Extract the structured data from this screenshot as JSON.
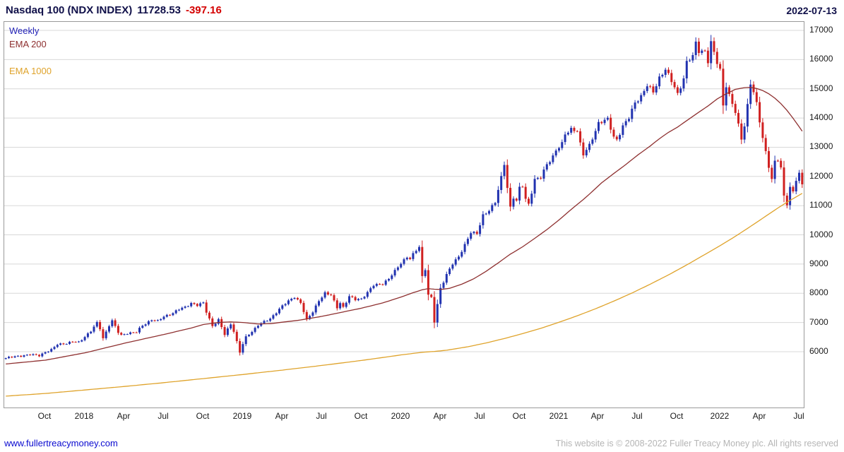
{
  "header": {
    "title": "Nasdaq 100 (NDX INDEX)",
    "last_price": "11728.53",
    "change": "-397.16",
    "date": "2022-07-13"
  },
  "legend": {
    "items": [
      {
        "label": "Weekly",
        "color": "#2424b8"
      },
      {
        "label": "EMA 200",
        "color": "#8e3030"
      },
      {
        "label": "EMA 1000",
        "color": "#dfa32b"
      }
    ]
  },
  "footer": {
    "website": "www.fullertreacymoney.com",
    "copyright": "This website is © 2008-2022 Fuller Treacy Money plc. All rights reserved"
  },
  "chart_data": {
    "type": "candlestick",
    "title": "Nasdaq 100 (NDX INDEX)",
    "interval": "Weekly",
    "as_of": "2022-07-13",
    "last_close": 11728.53,
    "prev_close": 12125.69,
    "change": -397.16,
    "legend_position": "top-left",
    "grid": "horizontal",
    "total_weeks": 263,
    "colors": {
      "up": "#2233b0",
      "down": "#d02020",
      "grid": "#d8d8d8",
      "border": "#9a9a9a"
    },
    "y_axis": {
      "position": "right",
      "ticks": [
        17000,
        16000,
        15000,
        14000,
        13000,
        12000,
        11000,
        10000,
        9000,
        8000,
        7000,
        6000
      ],
      "view_max": 17290,
      "view_min": 4090
    },
    "x_axis": {
      "start": "2017-07",
      "end": "2022-07",
      "labels": [
        {
          "text": "Oct",
          "week": 13
        },
        {
          "text": "2018",
          "week": 26
        },
        {
          "text": "Apr",
          "week": 39
        },
        {
          "text": "Jul",
          "week": 52
        },
        {
          "text": "Oct",
          "week": 65
        },
        {
          "text": "2019",
          "week": 78
        },
        {
          "text": "Apr",
          "week": 91
        },
        {
          "text": "Jul",
          "week": 104
        },
        {
          "text": "Oct",
          "week": 117
        },
        {
          "text": "2020",
          "week": 130
        },
        {
          "text": "Apr",
          "week": 143
        },
        {
          "text": "Jul",
          "week": 156
        },
        {
          "text": "Oct",
          "week": 169
        },
        {
          "text": "2021",
          "week": 182
        },
        {
          "text": "Apr",
          "week": 195
        },
        {
          "text": "Jul",
          "week": 208
        },
        {
          "text": "Oct",
          "week": 221
        },
        {
          "text": "2022",
          "week": 235
        },
        {
          "text": "Apr",
          "week": 248
        },
        {
          "text": "Jul",
          "week": 261
        }
      ]
    },
    "price_anchors": [
      [
        0,
        5780
      ],
      [
        4,
        5850
      ],
      [
        8,
        5900
      ],
      [
        11,
        5870
      ],
      [
        13,
        5990
      ],
      [
        15,
        6060
      ],
      [
        17,
        6250
      ],
      [
        20,
        6290
      ],
      [
        22,
        6340
      ],
      [
        24,
        6320
      ],
      [
        26,
        6520
      ],
      [
        28,
        6710
      ],
      [
        30,
        6980
      ],
      [
        31,
        6790
      ],
      [
        32,
        6460
      ],
      [
        34,
        6910
      ],
      [
        35,
        7060
      ],
      [
        37,
        6660
      ],
      [
        38,
        6560
      ],
      [
        40,
        6640
      ],
      [
        43,
        6670
      ],
      [
        45,
        6890
      ],
      [
        48,
        7100
      ],
      [
        50,
        7040
      ],
      [
        52,
        7200
      ],
      [
        55,
        7330
      ],
      [
        57,
        7450
      ],
      [
        59,
        7520
      ],
      [
        61,
        7670
      ],
      [
        63,
        7590
      ],
      [
        65,
        7660
      ],
      [
        66,
        7360
      ],
      [
        68,
        6890
      ],
      [
        70,
        7090
      ],
      [
        72,
        6580
      ],
      [
        74,
        6950
      ],
      [
        75,
        6710
      ],
      [
        77,
        5980
      ],
      [
        78,
        6260
      ],
      [
        79,
        6490
      ],
      [
        81,
        6690
      ],
      [
        83,
        6920
      ],
      [
        85,
        7020
      ],
      [
        87,
        7120
      ],
      [
        89,
        7360
      ],
      [
        91,
        7570
      ],
      [
        93,
        7720
      ],
      [
        95,
        7880
      ],
      [
        97,
        7680
      ],
      [
        99,
        7080
      ],
      [
        101,
        7360
      ],
      [
        103,
        7760
      ],
      [
        105,
        8000
      ],
      [
        107,
        7930
      ],
      [
        109,
        7520
      ],
      [
        110,
        7680
      ],
      [
        111,
        7520
      ],
      [
        113,
        7880
      ],
      [
        115,
        7790
      ],
      [
        117,
        7820
      ],
      [
        119,
        8020
      ],
      [
        121,
        8270
      ],
      [
        124,
        8340
      ],
      [
        126,
        8490
      ],
      [
        128,
        8750
      ],
      [
        130,
        9040
      ],
      [
        132,
        9250
      ],
      [
        133,
        9180
      ],
      [
        135,
        9460
      ],
      [
        136,
        9590
      ],
      [
        137,
        8570
      ],
      [
        138,
        8840
      ],
      [
        139,
        7960
      ],
      [
        140,
        7840
      ],
      [
        141,
        7010
      ],
      [
        142,
        7610
      ],
      [
        143,
        8160
      ],
      [
        145,
        8660
      ],
      [
        147,
        9010
      ],
      [
        149,
        9230
      ],
      [
        151,
        9670
      ],
      [
        153,
        10100
      ],
      [
        155,
        10020
      ],
      [
        157,
        10660
      ],
      [
        159,
        10860
      ],
      [
        161,
        11110
      ],
      [
        163,
        11950
      ],
      [
        164,
        12430
      ],
      [
        165,
        11630
      ],
      [
        166,
        10950
      ],
      [
        167,
        11290
      ],
      [
        168,
        11160
      ],
      [
        169,
        11590
      ],
      [
        170,
        11670
      ],
      [
        171,
        11220
      ],
      [
        172,
        11060
      ],
      [
        174,
        11900
      ],
      [
        176,
        11950
      ],
      [
        178,
        12410
      ],
      [
        180,
        12700
      ],
      [
        181,
        12900
      ],
      [
        183,
        13100
      ],
      [
        184,
        13430
      ],
      [
        186,
        13630
      ],
      [
        188,
        13580
      ],
      [
        189,
        13100
      ],
      [
        190,
        12730
      ],
      [
        192,
        13070
      ],
      [
        193,
        13330
      ],
      [
        195,
        13830
      ],
      [
        197,
        13900
      ],
      [
        198,
        13950
      ],
      [
        200,
        13360
      ],
      [
        201,
        13270
      ],
      [
        203,
        13700
      ],
      [
        205,
        14000
      ],
      [
        207,
        14550
      ],
      [
        209,
        14740
      ],
      [
        211,
        15100
      ],
      [
        213,
        14900
      ],
      [
        215,
        15390
      ],
      [
        217,
        15660
      ],
      [
        218,
        15450
      ],
      [
        220,
        15060
      ],
      [
        221,
        14830
      ],
      [
        223,
        15360
      ],
      [
        224,
        15890
      ],
      [
        226,
        16110
      ],
      [
        227,
        16580
      ],
      [
        228,
        16320
      ],
      [
        230,
        16290
      ],
      [
        231,
        15920
      ],
      [
        232,
        16550
      ],
      [
        234,
        15910
      ],
      [
        235,
        15660
      ],
      [
        236,
        14460
      ],
      [
        237,
        15110
      ],
      [
        238,
        14750
      ],
      [
        240,
        14190
      ],
      [
        241,
        13760
      ],
      [
        242,
        13310
      ],
      [
        243,
        13760
      ],
      [
        244,
        14430
      ],
      [
        245,
        15170
      ],
      [
        246,
        14870
      ],
      [
        247,
        14470
      ],
      [
        248,
        13900
      ],
      [
        249,
        13340
      ],
      [
        250,
        12850
      ],
      [
        251,
        12350
      ],
      [
        252,
        11890
      ],
      [
        253,
        12480
      ],
      [
        254,
        12570
      ],
      [
        255,
        12290
      ],
      [
        256,
        11340
      ],
      [
        257,
        11080
      ],
      [
        258,
        11620
      ],
      [
        259,
        11460
      ],
      [
        260,
        11870
      ],
      [
        261,
        12125.69
      ],
      [
        262,
        11728.53
      ]
    ],
    "overlays": [
      {
        "id": "ema-200-line",
        "name": "EMA 200",
        "color": "#8e3030",
        "points": [
          [
            0,
            5580
          ],
          [
            13,
            5710
          ],
          [
            26,
            5960
          ],
          [
            39,
            6290
          ],
          [
            52,
            6590
          ],
          [
            61,
            6810
          ],
          [
            65,
            6930
          ],
          [
            70,
            7000
          ],
          [
            74,
            7020
          ],
          [
            78,
            7000
          ],
          [
            83,
            6950
          ],
          [
            87,
            6960
          ],
          [
            91,
            7010
          ],
          [
            96,
            7070
          ],
          [
            104,
            7210
          ],
          [
            110,
            7340
          ],
          [
            117,
            7490
          ],
          [
            124,
            7670
          ],
          [
            130,
            7870
          ],
          [
            134,
            8020
          ],
          [
            137,
            8120
          ],
          [
            139,
            8160
          ],
          [
            141,
            8140
          ],
          [
            143,
            8130
          ],
          [
            146,
            8170
          ],
          [
            150,
            8310
          ],
          [
            154,
            8500
          ],
          [
            158,
            8750
          ],
          [
            162,
            9040
          ],
          [
            166,
            9340
          ],
          [
            170,
            9590
          ],
          [
            174,
            9880
          ],
          [
            178,
            10180
          ],
          [
            182,
            10510
          ],
          [
            186,
            10870
          ],
          [
            190,
            11210
          ],
          [
            193,
            11490
          ],
          [
            196,
            11780
          ],
          [
            200,
            12100
          ],
          [
            204,
            12410
          ],
          [
            208,
            12740
          ],
          [
            212,
            13040
          ],
          [
            215,
            13290
          ],
          [
            218,
            13510
          ],
          [
            221,
            13690
          ],
          [
            224,
            13910
          ],
          [
            228,
            14200
          ],
          [
            231,
            14410
          ],
          [
            234,
            14650
          ],
          [
            237,
            14830
          ],
          [
            240,
            14980
          ],
          [
            243,
            15040
          ],
          [
            245,
            15050
          ],
          [
            247,
            15010
          ],
          [
            249,
            14940
          ],
          [
            251,
            14830
          ],
          [
            253,
            14680
          ],
          [
            255,
            14490
          ],
          [
            257,
            14260
          ],
          [
            259,
            13990
          ],
          [
            261,
            13700
          ],
          [
            262,
            13550
          ]
        ]
      },
      {
        "id": "ema-1000-line",
        "name": "EMA 1000",
        "color": "#dfa32b",
        "points": [
          [
            0,
            4480
          ],
          [
            13,
            4570
          ],
          [
            26,
            4690
          ],
          [
            39,
            4810
          ],
          [
            52,
            4940
          ],
          [
            65,
            5080
          ],
          [
            78,
            5220
          ],
          [
            91,
            5370
          ],
          [
            104,
            5530
          ],
          [
            117,
            5700
          ],
          [
            130,
            5890
          ],
          [
            137,
            5980
          ],
          [
            141,
            6010
          ],
          [
            145,
            6050
          ],
          [
            152,
            6170
          ],
          [
            158,
            6300
          ],
          [
            164,
            6450
          ],
          [
            170,
            6620
          ],
          [
            176,
            6800
          ],
          [
            182,
            7010
          ],
          [
            188,
            7230
          ],
          [
            194,
            7470
          ],
          [
            200,
            7730
          ],
          [
            206,
            8010
          ],
          [
            212,
            8310
          ],
          [
            218,
            8630
          ],
          [
            224,
            8970
          ],
          [
            230,
            9330
          ],
          [
            235,
            9630
          ],
          [
            240,
            9950
          ],
          [
            244,
            10220
          ],
          [
            248,
            10500
          ],
          [
            251,
            10710
          ],
          [
            254,
            10920
          ],
          [
            256,
            11050
          ],
          [
            258,
            11180
          ],
          [
            260,
            11300
          ],
          [
            262,
            11420
          ]
        ]
      }
    ]
  }
}
